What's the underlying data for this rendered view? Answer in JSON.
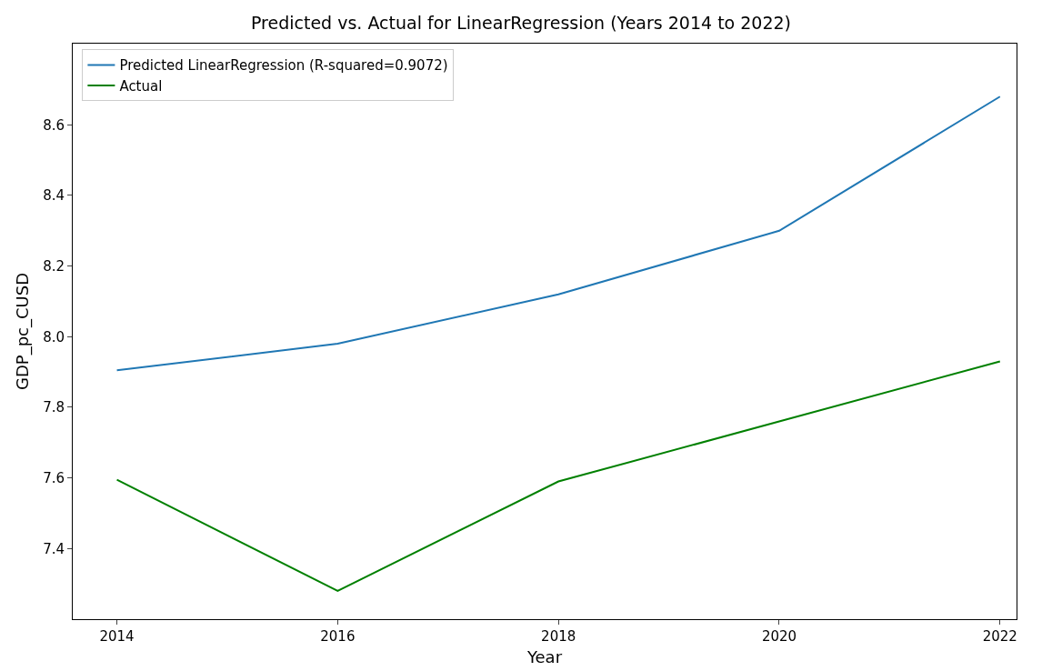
{
  "chart_data": {
    "type": "line",
    "title": "Predicted vs. Actual for LinearRegression (Years 2014 to 2022)",
    "xlabel": "Year",
    "ylabel": "GDP_pc_CUSD",
    "x": [
      2014,
      2016,
      2018,
      2020,
      2022
    ],
    "series": [
      {
        "name": "Predicted LinearRegression (R-squared=0.9072)",
        "color": "#1f77b4",
        "values": [
          7.905,
          7.98,
          8.12,
          8.3,
          8.68
        ]
      },
      {
        "name": "Actual",
        "color": "#008000",
        "values": [
          7.595,
          7.28,
          7.59,
          7.76,
          7.93
        ]
      }
    ],
    "xlim": [
      2013.6,
      2022.15
    ],
    "xticks": [
      2014,
      2016,
      2018,
      2020,
      2022
    ],
    "ylim": [
      7.2,
      8.83
    ],
    "yticks": [
      7.4,
      7.6,
      7.8,
      {
        "value": 8,
        "label": "8.0"
      },
      8.2,
      8.4,
      8.6
    ],
    "grid": false,
    "legend": "top left",
    "marker": "none",
    "line_style": "solid"
  }
}
